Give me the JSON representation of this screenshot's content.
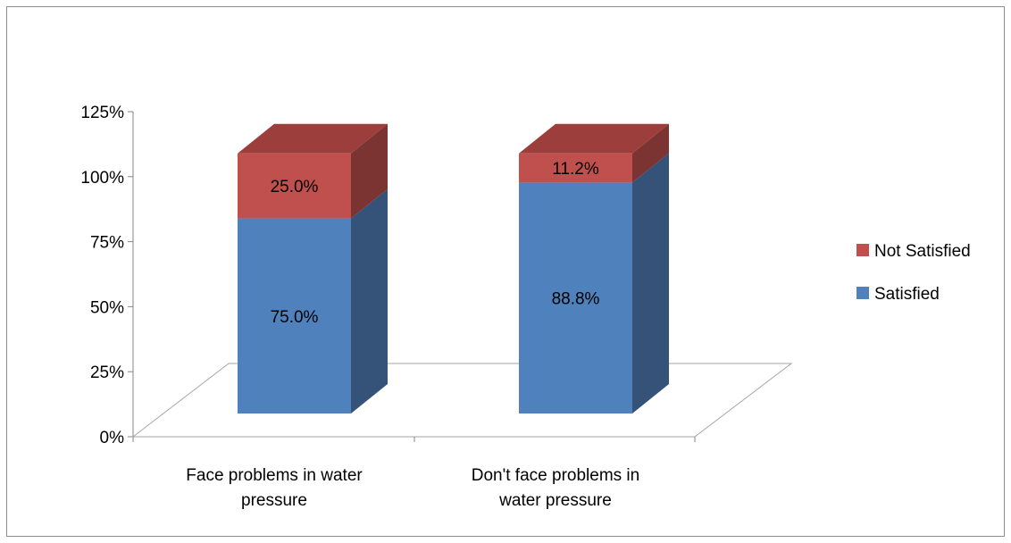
{
  "chart_data": {
    "type": "bar",
    "stacked": true,
    "three_d": true,
    "categories": [
      [
        "Face problems in water",
        "pressure"
      ],
      [
        "Don't face problems in",
        "water pressure"
      ]
    ],
    "series": [
      {
        "name": "Satisfied",
        "values": [
          75.0,
          88.8
        ],
        "labels": [
          "75.0%",
          "88.8%"
        ],
        "color": "#4f81bd",
        "side_color": "#355279",
        "top_color": "#4f81bd"
      },
      {
        "name": "Not Satisfied",
        "values": [
          25.0,
          11.2
        ],
        "labels": [
          "25.0%",
          "11.2%"
        ],
        "color": "#c0504d",
        "side_color": "#7c3432",
        "top_color": "#9b3e3c"
      }
    ],
    "yticks": [
      "0%",
      "25%",
      "50%",
      "75%",
      "100%",
      "125%"
    ],
    "ylim": [
      0,
      125
    ],
    "legend_position": "right",
    "grid": false,
    "title": "",
    "xlabel": "",
    "ylabel": ""
  }
}
